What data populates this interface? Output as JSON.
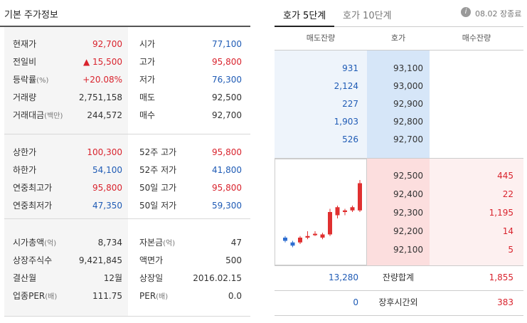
{
  "left": {
    "title": "기본 주가정보",
    "section1": [
      {
        "l1": "현재가",
        "u1": "",
        "v1": "92,700",
        "c1": "red",
        "l2": "시가",
        "u2": "",
        "v2": "77,100",
        "c2": "blue"
      },
      {
        "l1": "전일비",
        "u1": "",
        "v1": "▲ 15,500",
        "c1": "red",
        "l2": "고가",
        "u2": "",
        "v2": "95,800",
        "c2": "red"
      },
      {
        "l1": "등락률",
        "u1": "(%)",
        "v1": "+20.08%",
        "c1": "red",
        "l2": "저가",
        "u2": "",
        "v2": "76,300",
        "c2": "blue"
      },
      {
        "l1": "거래량",
        "u1": "",
        "v1": "2,751,158",
        "c1": "dark",
        "l2": "매도",
        "u2": "",
        "v2": "92,500",
        "c2": "dark"
      },
      {
        "l1": "거래대금",
        "u1": "(백만)",
        "v1": "244,572",
        "c1": "dark",
        "l2": "매수",
        "u2": "",
        "v2": "92,700",
        "c2": "dark"
      }
    ],
    "section2": [
      {
        "l1": "상한가",
        "u1": "",
        "v1": "100,300",
        "c1": "red",
        "l2": "52주 고가",
        "u2": "",
        "v2": "95,800",
        "c2": "red"
      },
      {
        "l1": "하한가",
        "u1": "",
        "v1": "54,100",
        "c1": "blue",
        "l2": "52주 저가",
        "u2": "",
        "v2": "41,800",
        "c2": "blue"
      },
      {
        "l1": "연중최고가",
        "u1": "",
        "v1": "95,800",
        "c1": "red",
        "l2": "50일 고가",
        "u2": "",
        "v2": "95,800",
        "c2": "red"
      },
      {
        "l1": "연중최저가",
        "u1": "",
        "v1": "47,350",
        "c1": "blue",
        "l2": "50일 저가",
        "u2": "",
        "v2": "59,300",
        "c2": "blue"
      }
    ],
    "section3": [
      {
        "l1": "시가총액",
        "u1": "(억)",
        "v1": "8,734",
        "c1": "dark",
        "l2": "자본금",
        "u2": "(억)",
        "v2": "47",
        "c2": "dark"
      },
      {
        "l1": "상장주식수",
        "u1": "",
        "v1": "9,421,845",
        "c1": "dark",
        "l2": "액면가",
        "u2": "",
        "v2": "500",
        "c2": "dark"
      },
      {
        "l1": "결산월",
        "u1": "",
        "v1": "12월",
        "c1": "dark",
        "l2": "상장일",
        "u2": "",
        "v2": "2016.02.15",
        "c2": "dark"
      },
      {
        "l1": "업종PER",
        "u1": "(배)",
        "v1": "111.75",
        "c1": "dark",
        "l2": "PER",
        "u2": "(배)",
        "v2": "0.0",
        "c2": "dark"
      }
    ]
  },
  "right": {
    "tabs": [
      "호가 5단계",
      "호가 10단계"
    ],
    "info_icon": "i",
    "status": "08.02 장종료",
    "headers": [
      "매도잔량",
      "호가",
      "매수잔량"
    ],
    "asks": [
      {
        "vol": "931",
        "price": "93,100"
      },
      {
        "vol": "2,124",
        "price": "93,000"
      },
      {
        "vol": "227",
        "price": "92,900"
      },
      {
        "vol": "1,903",
        "price": "92,800"
      },
      {
        "vol": "526",
        "price": "92,700"
      }
    ],
    "bids": [
      {
        "price": "92,500",
        "vol": "445"
      },
      {
        "price": "92,400",
        "vol": "22"
      },
      {
        "price": "92,300",
        "vol": "1,195"
      },
      {
        "price": "92,200",
        "vol": "14"
      },
      {
        "price": "92,100",
        "vol": "5"
      }
    ],
    "totals": {
      "ask": "13,280",
      "label": "잔량합계",
      "bid": "1,855"
    },
    "after": {
      "ask": "0",
      "label": "장후시간외",
      "bid": "383"
    },
    "mini_chart": {
      "up_color": "#e03030",
      "down_color": "#2f6fd1",
      "candles": [
        {
          "o": 74,
          "c": 73,
          "h": 74.5,
          "l": 72.5
        },
        {
          "o": 72.5,
          "c": 71.5,
          "h": 73,
          "l": 71
        },
        {
          "o": 72.5,
          "c": 74,
          "h": 74.5,
          "l": 72
        },
        {
          "o": 74,
          "c": 74.5,
          "h": 76,
          "l": 73.5
        },
        {
          "o": 75,
          "c": 75.2,
          "h": 76,
          "l": 74.5
        },
        {
          "o": 74,
          "c": 75,
          "h": 75.5,
          "l": 73.5
        },
        {
          "o": 75,
          "c": 82,
          "h": 83,
          "l": 74.5
        },
        {
          "o": 81,
          "c": 83.5,
          "h": 84,
          "l": 80
        },
        {
          "o": 82,
          "c": 82.5,
          "h": 83,
          "l": 81
        },
        {
          "o": 82.5,
          "c": 83.5,
          "h": 84,
          "l": 82
        },
        {
          "o": 82.5,
          "c": 91,
          "h": 92,
          "l": 82
        }
      ]
    }
  }
}
